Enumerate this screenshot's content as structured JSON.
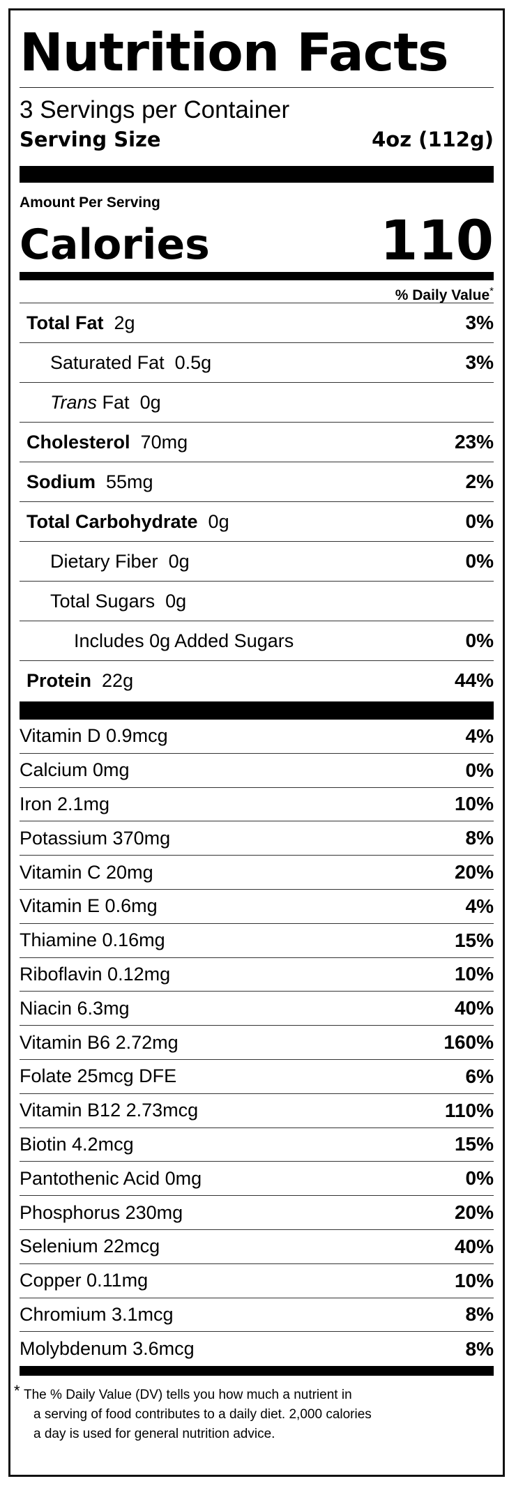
{
  "title": "Nutrition Facts",
  "servings_per_container": "3 Servings per Container",
  "serving_size": {
    "label": "Serving Size",
    "value": "4oz (112g)"
  },
  "amount_per_serving": "Amount Per Serving",
  "calories": {
    "label": "Calories",
    "value": "110"
  },
  "daily_value_header": "% Daily Value",
  "daily_value_star": "*",
  "nutrients": [
    {
      "name": "Total Fat",
      "amount": "2g",
      "pct": "3%"
    },
    {
      "name": "Saturated Fat",
      "amount": "0.5g",
      "pct": "3%"
    },
    {
      "name_italic": "Trans",
      "name": "Fat",
      "amount": "0g",
      "pct": ""
    },
    {
      "name": "Cholesterol",
      "amount": "70mg",
      "pct": "23%"
    },
    {
      "name": "Sodium",
      "amount": "55mg",
      "pct": "2%"
    },
    {
      "name": "Total Carbohydrate",
      "amount": "0g",
      "pct": "0%"
    },
    {
      "name": "Dietary Fiber",
      "amount": "0g",
      "pct": "0%"
    },
    {
      "name": "Total Sugars",
      "amount": "0g",
      "pct": ""
    },
    {
      "name": "Includes 0g Added Sugars",
      "amount": "",
      "pct": "0%"
    },
    {
      "name": "Protein",
      "amount": "22g",
      "pct": "44%"
    }
  ],
  "vitamins": [
    {
      "label": "Vitamin D 0.9mcg",
      "pct": "4%"
    },
    {
      "label": "Calcium 0mg",
      "pct": "0%"
    },
    {
      "label": "Iron 2.1mg",
      "pct": "10%"
    },
    {
      "label": "Potassium 370mg",
      "pct": "8%"
    },
    {
      "label": "Vitamin C 20mg",
      "pct": "20%"
    },
    {
      "label": "Vitamin E 0.6mg",
      "pct": "4%"
    },
    {
      "label": "Thiamine 0.16mg",
      "pct": "15%"
    },
    {
      "label": "Riboflavin 0.12mg",
      "pct": "10%"
    },
    {
      "label": "Niacin 6.3mg",
      "pct": "40%"
    },
    {
      "label": "Vitamin B6 2.72mg",
      "pct": "160%"
    },
    {
      "label": "Folate 25mcg DFE",
      "pct": "6%"
    },
    {
      "label": "Vitamin B12 2.73mcg",
      "pct": "110%"
    },
    {
      "label": "Biotin 4.2mcg",
      "pct": "15%"
    },
    {
      "label": "Pantothenic Acid 0mg",
      "pct": "0%"
    },
    {
      "label": "Phosphorus 230mg",
      "pct": "20%"
    },
    {
      "label": "Selenium 22mcg",
      "pct": "40%"
    },
    {
      "label": "Copper 0.11mg",
      "pct": "10%"
    },
    {
      "label": "Chromium 3.1mcg",
      "pct": "8%"
    },
    {
      "label": "Molybdenum 3.6mcg",
      "pct": "8%"
    }
  ],
  "footnote": {
    "star": "*",
    "line1": "The % Daily Value (DV) tells you how much a nutrient in",
    "line2": "a serving of food contributes to a daily diet. 2,000 calories",
    "line3": "a day is used for general nutrition advice."
  }
}
